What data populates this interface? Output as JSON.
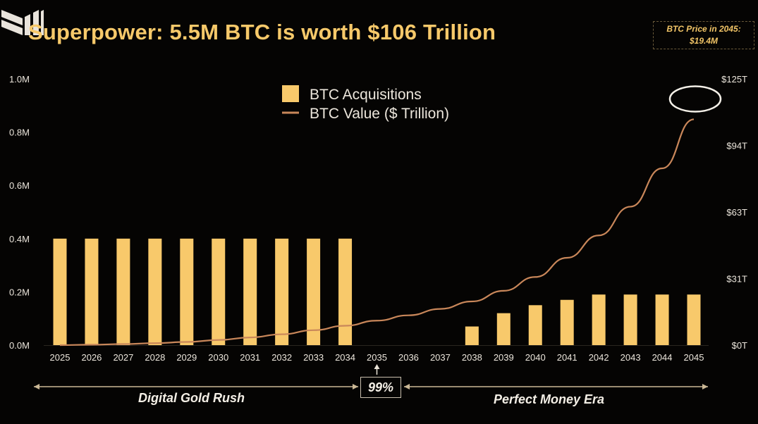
{
  "title": "Superpower: 5.5M BTC is worth $106 Trillion",
  "price_note": {
    "line1": "BTC Price in 2045:",
    "line2": "$19.4M"
  },
  "colors": {
    "bar": "#f8c96b",
    "line": "#c9875a",
    "title": "#f7c96a",
    "background": "#050403"
  },
  "eras": {
    "left": "Digital Gold Rush",
    "middle": "99%",
    "right": "Perfect Money Era"
  },
  "chart_data": {
    "type": "bar",
    "title": "",
    "categories": [
      "2025",
      "2026",
      "2027",
      "2028",
      "2029",
      "2030",
      "2031",
      "2032",
      "2033",
      "2034",
      "2035",
      "2036",
      "2037",
      "2038",
      "2039",
      "2040",
      "2041",
      "2042",
      "2043",
      "2044",
      "2045"
    ],
    "series": [
      {
        "name": "BTC Acquisitions",
        "type": "bar",
        "axis": "left",
        "values": [
          400000,
          400000,
          400000,
          400000,
          400000,
          400000,
          400000,
          400000,
          400000,
          400000,
          0,
          0,
          0,
          70000,
          120000,
          150000,
          170000,
          190000,
          190000,
          190000,
          190000
        ]
      },
      {
        "name": "BTC Value ($ Trillion)",
        "type": "line",
        "axis": "right",
        "values": [
          0,
          0.2,
          0.5,
          0.9,
          1.5,
          2.4,
          3.6,
          5.1,
          7.0,
          9.1,
          11.5,
          14.0,
          17.0,
          20.5,
          25.5,
          32.0,
          41.0,
          51.5,
          65.0,
          83.0,
          106
        ]
      }
    ],
    "y_left": {
      "range": [
        0,
        1000000
      ],
      "ticks": [
        "0.0M",
        "0.2M",
        "0.4M",
        "0.6M",
        "0.8M",
        "1.0M"
      ]
    },
    "y_right": {
      "range": [
        0,
        125
      ],
      "ticks": [
        "$0T",
        "$31T",
        "$63T",
        "$94T",
        "$125T"
      ]
    },
    "legend": "top-center",
    "grid": false,
    "highlight": "2045 value (circled)"
  }
}
